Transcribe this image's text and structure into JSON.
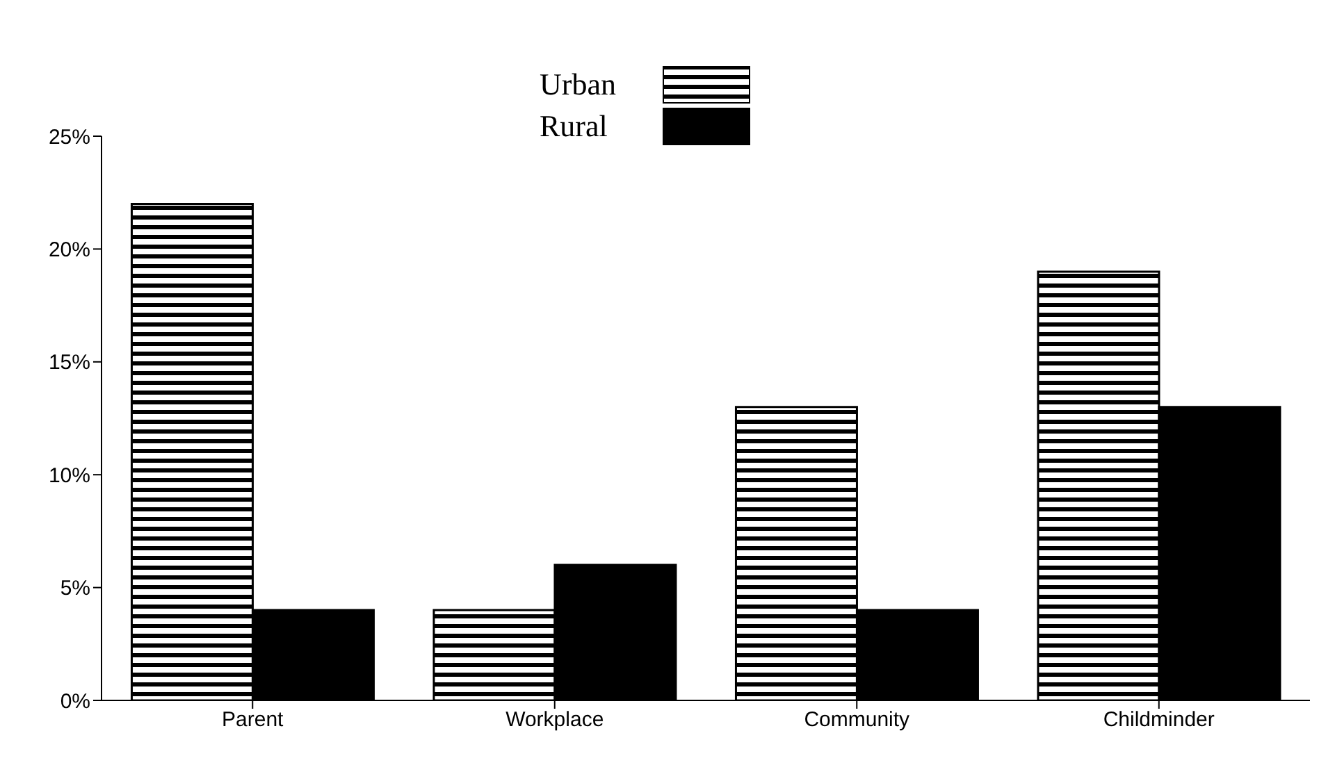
{
  "chart_data": {
    "type": "bar",
    "categories": [
      "Parent",
      "Workplace",
      "Community",
      "Childminder"
    ],
    "series": [
      {
        "name": "Urban",
        "color": "#000000",
        "values": [
          22,
          4,
          13,
          19
        ]
      },
      {
        "name": "Rural",
        "color": "#000000",
        "values": [
          4,
          6,
          4,
          13
        ]
      }
    ],
    "ylim": [
      0,
      25
    ],
    "yticks": [
      {
        "value": 0,
        "label": "0%"
      },
      {
        "value": 5,
        "label": "5%"
      },
      {
        "value": 10,
        "label": "10%"
      },
      {
        "value": 15,
        "label": "15%"
      },
      {
        "value": 20,
        "label": "20%"
      },
      {
        "value": 25,
        "label": "25%"
      }
    ],
    "grid": false,
    "legend": "top"
  }
}
